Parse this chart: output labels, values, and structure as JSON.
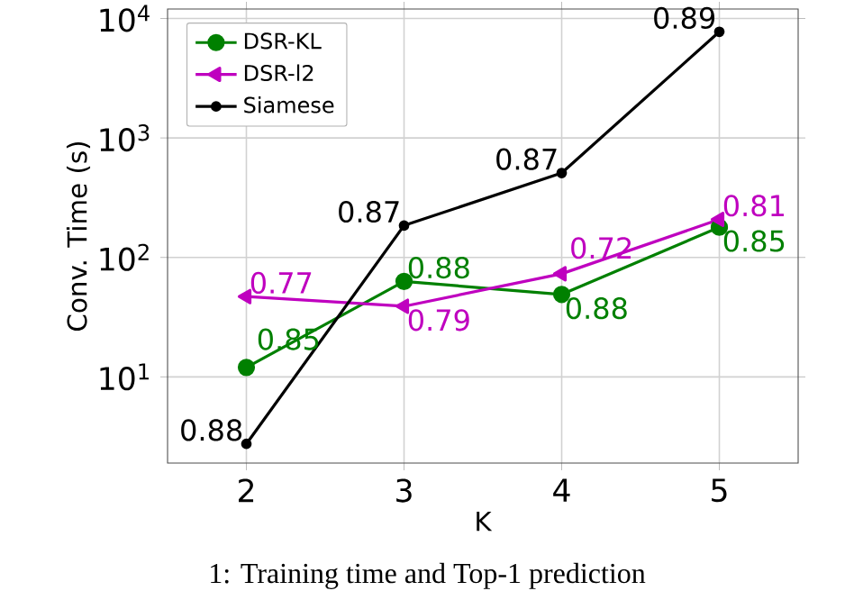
{
  "chart_data": {
    "type": "line",
    "xlabel": "K",
    "ylabel": "Conv. Time (s)",
    "x": [
      2,
      3,
      4,
      5
    ],
    "series": [
      {
        "name": "DSR-KL",
        "color": "#008000",
        "marker": "circle",
        "values": [
          12,
          63,
          49,
          179
        ]
      },
      {
        "name": "DSR-l2",
        "color": "#bf00bf",
        "marker": "triangle",
        "values": [
          47,
          39,
          73,
          208
        ]
      },
      {
        "name": "Siamese",
        "color": "#000000",
        "marker": "circle",
        "values": [
          2.75,
          185,
          509,
          7740
        ]
      }
    ],
    "log": "y",
    "grid": true,
    "legend": "top left",
    "xlim": [
      1.5,
      5.5
    ],
    "xticks": [
      2,
      3,
      4,
      5
    ],
    "ylim": [
      1.9,
      12000
    ],
    "yticks": [
      {
        "value": 10,
        "label": "10$^{1}$"
      },
      {
        "value": 100,
        "label": "10$^{2}$"
      },
      {
        "value": 1000,
        "label": "10$^{3}$"
      },
      {
        "value": 10000,
        "label": "10$^{4}$"
      }
    ],
    "annotations": [
      {
        "text": "0.85",
        "x": 2,
        "y": 12
      },
      {
        "text": "0.88",
        "x": 3,
        "y": 63
      },
      {
        "text": "0.88",
        "x": 4,
        "y": 49
      },
      {
        "text": "0.85",
        "x": 5,
        "y": 179
      },
      {
        "text": "0.77",
        "x": 2,
        "y": 47
      },
      {
        "text": "0.79",
        "x": 3,
        "y": 39
      },
      {
        "text": "0.72",
        "x": 4,
        "y": 73
      },
      {
        "text": "0.81",
        "x": 5,
        "y": 208
      },
      {
        "text": "0.88",
        "x": 2,
        "y": 2.75
      },
      {
        "text": "0.87",
        "x": 3,
        "y": 185
      },
      {
        "text": "0.87",
        "x": 4,
        "y": 509
      },
      {
        "text": "0.89",
        "x": 5,
        "y": 7740
      },
      "1: Training time and Top-1 prediction"
    ]
  }
}
